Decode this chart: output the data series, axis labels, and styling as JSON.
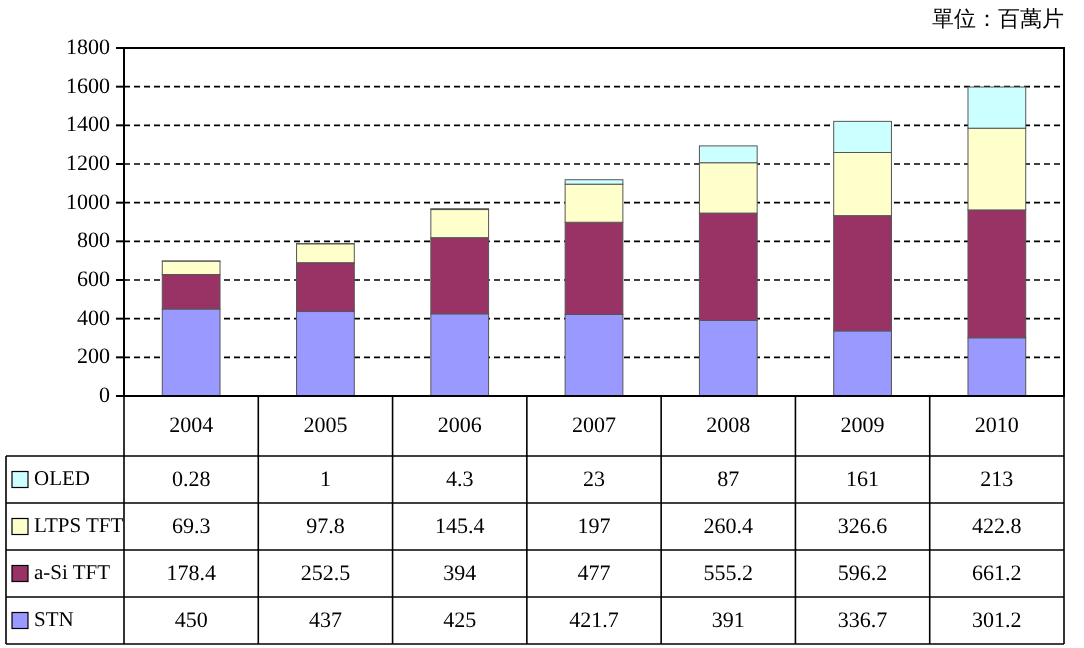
{
  "chart_data": {
    "type": "bar",
    "stacked": true,
    "categories": [
      "2004",
      "2005",
      "2006",
      "2007",
      "2008",
      "2009",
      "2010"
    ],
    "series": [
      {
        "name": "STN",
        "color": "#9999ff",
        "values": [
          450,
          437,
          425,
          421.7,
          391,
          336.7,
          301.2
        ]
      },
      {
        "name": "a-Si TFT",
        "color": "#993366",
        "values": [
          178.4,
          252.5,
          394,
          477,
          555.2,
          596.2,
          661.2
        ]
      },
      {
        "name": "LTPS TFT",
        "color": "#ffffcc",
        "values": [
          69.3,
          97.8,
          145.4,
          197,
          260.4,
          326.6,
          422.8
        ]
      },
      {
        "name": "OLED",
        "color": "#ccffff",
        "values": [
          0.28,
          1,
          4.3,
          23,
          87,
          161,
          213
        ]
      }
    ],
    "ylim": [
      0,
      1800
    ],
    "yticks": [
      0,
      200,
      400,
      600,
      800,
      1000,
      1200,
      1400,
      1600,
      1800
    ],
    "grid": "y",
    "legend": "bottom",
    "data_labels": true,
    "annotations": [
      "單位：百萬片"
    ]
  }
}
